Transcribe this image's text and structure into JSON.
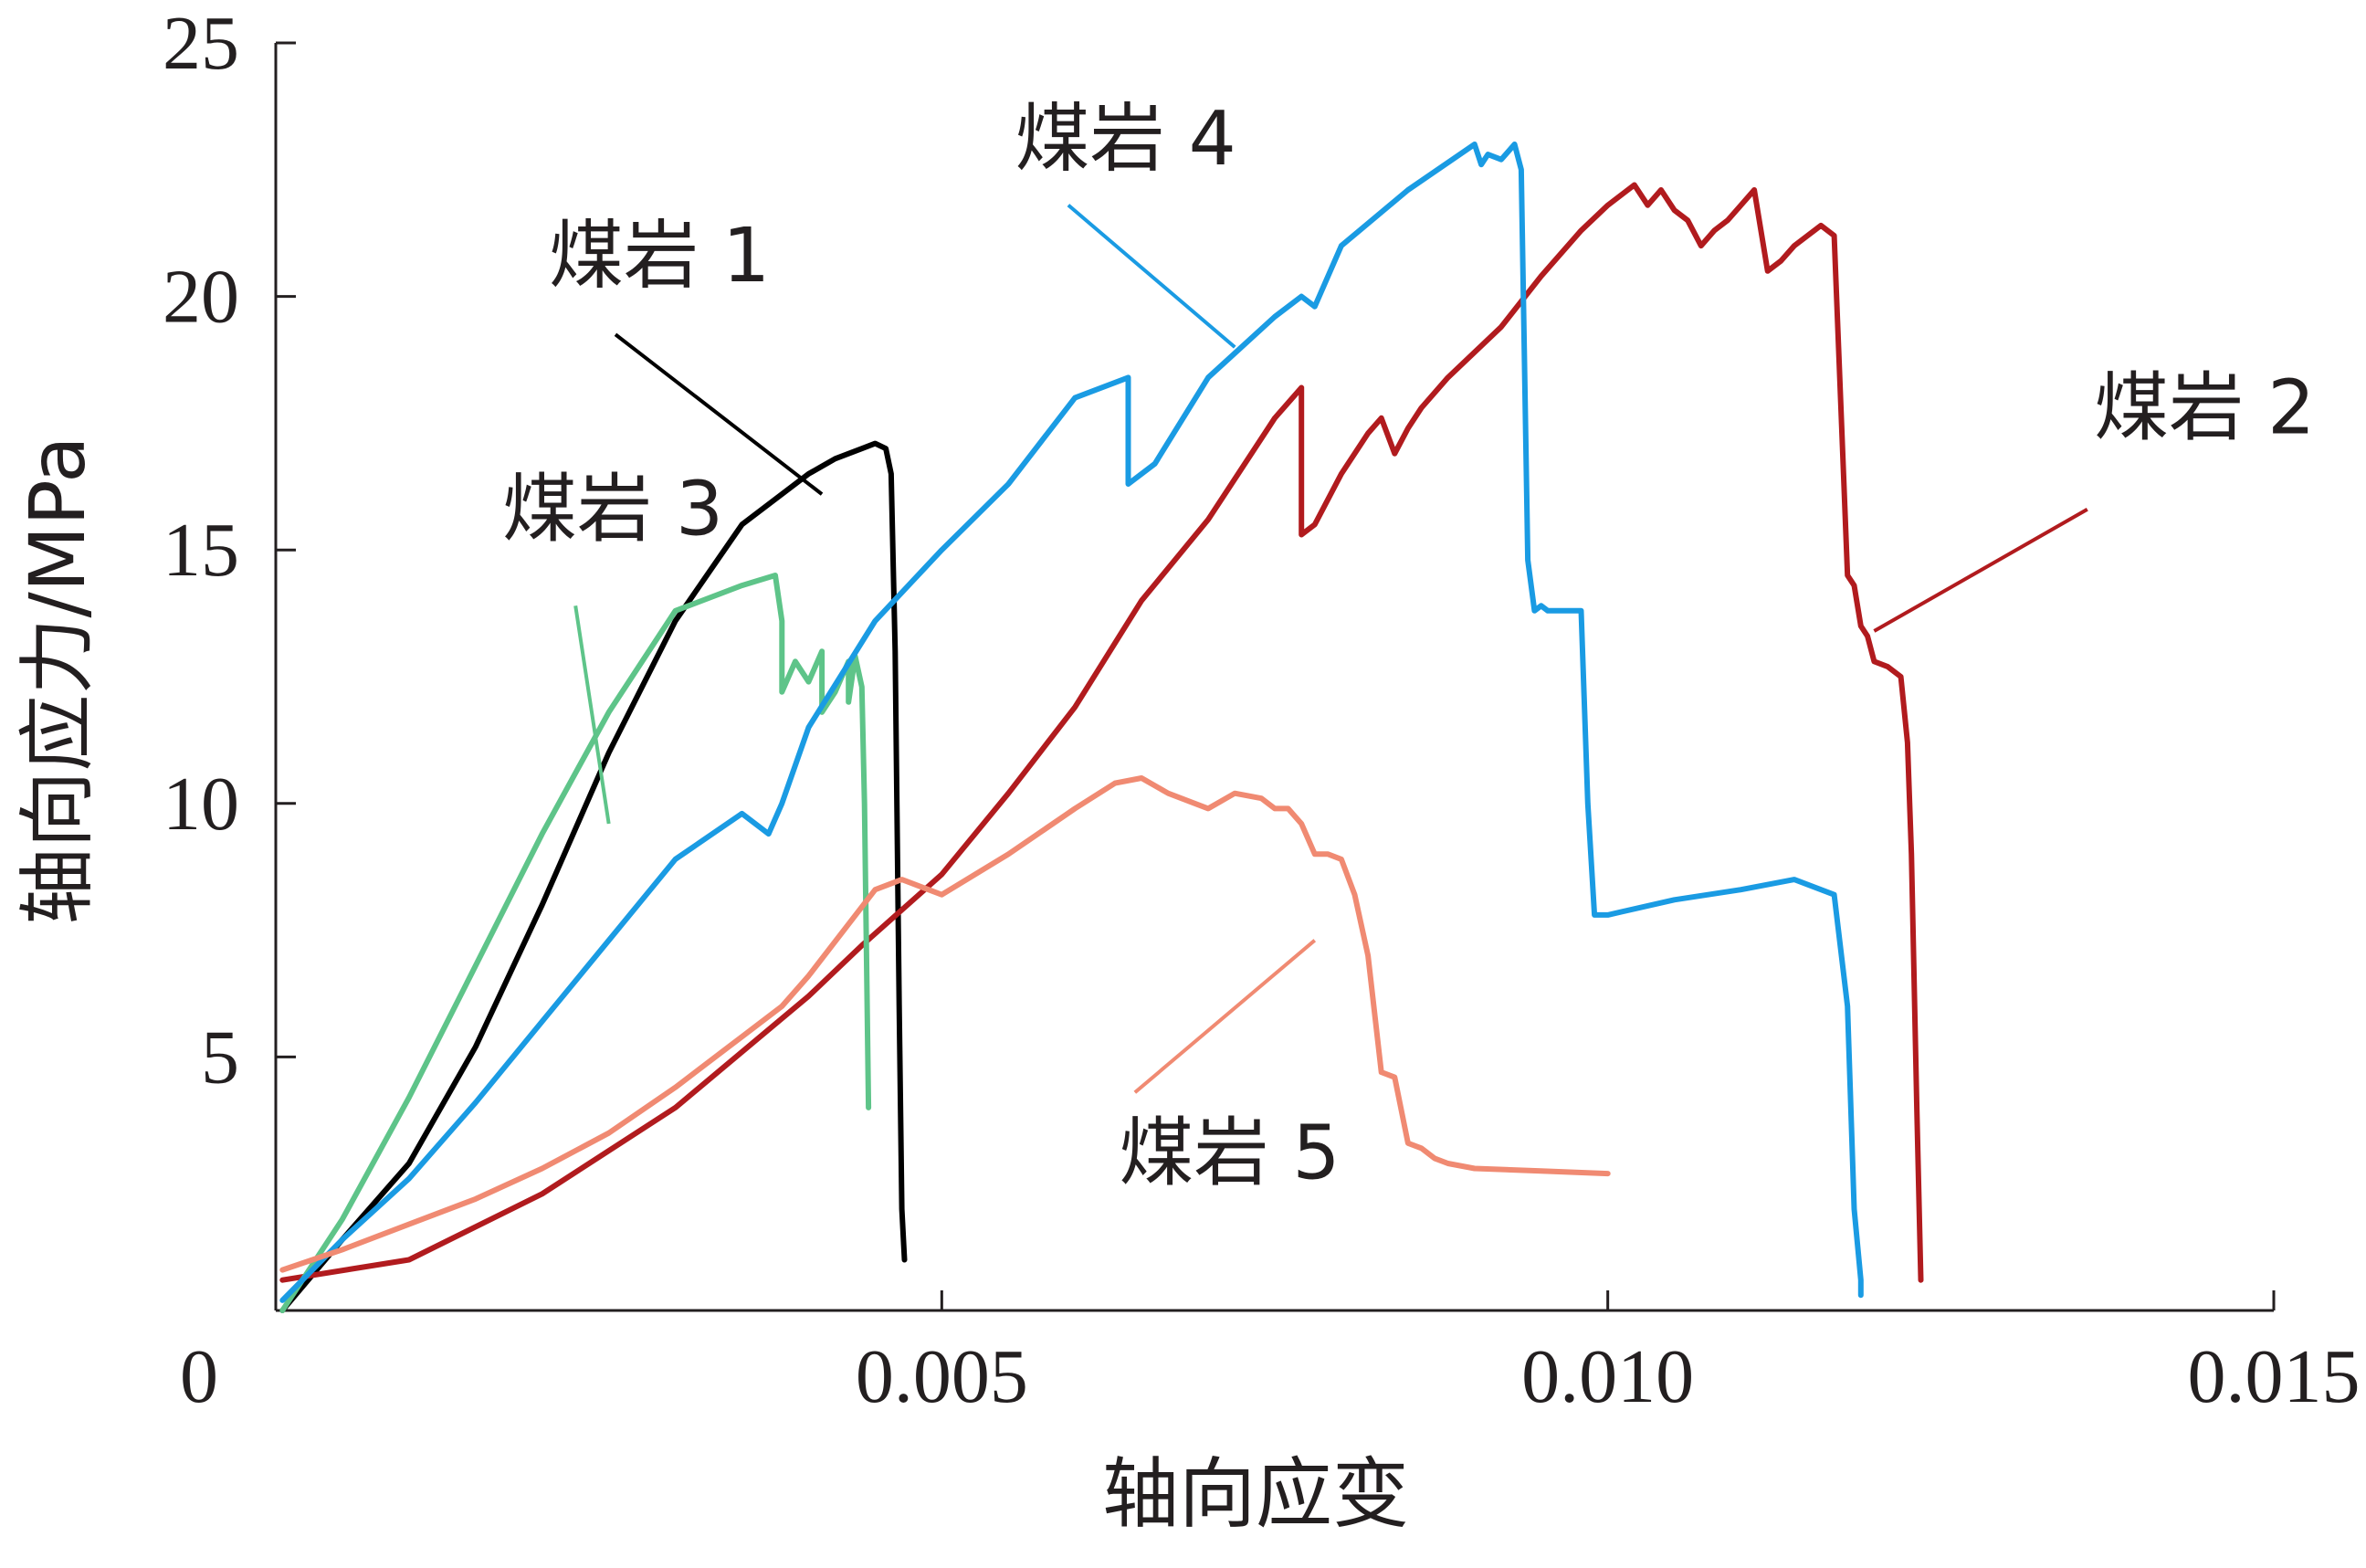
{
  "chart_data": {
    "type": "line",
    "xlabel": "轴向应变",
    "ylabel": "轴向应力/MPa",
    "xlim": [
      0,
      0.015
    ],
    "ylim": [
      0,
      25
    ],
    "x_ticks": [
      0,
      0.005,
      0.01,
      0.015
    ],
    "x_tick_labels": [
      "0",
      "0.005",
      "0.010",
      "0.015"
    ],
    "y_ticks": [
      5,
      10,
      15,
      20,
      25
    ],
    "y_tick_labels": [
      "5",
      "10",
      "15",
      "20",
      "25"
    ],
    "grid": false,
    "series": [
      {
        "name": "煤岩 1",
        "color": "#000000",
        "x": [
          5e-05,
          0.0005,
          0.001,
          0.0015,
          0.002,
          0.0025,
          0.003,
          0.0035,
          0.004,
          0.0042,
          0.0044,
          0.0045,
          0.00458,
          0.00462,
          0.00465,
          0.00468,
          0.0047,
          0.00472
        ],
        "y": [
          0,
          1.4,
          2.9,
          5.2,
          8,
          11,
          13.6,
          15.5,
          16.5,
          16.8,
          17.0,
          17.1,
          17.0,
          16.5,
          13,
          6,
          2,
          1.0
        ]
      },
      {
        "name": "煤岩 2",
        "color": "#b11b1e",
        "x": [
          5e-05,
          0.001,
          0.002,
          0.003,
          0.004,
          0.0044,
          0.005,
          0.0055,
          0.006,
          0.0065,
          0.007,
          0.0075,
          0.0077,
          0.0077,
          0.0078,
          0.008,
          0.0082,
          0.0083,
          0.0084,
          0.0085,
          0.0086,
          0.0088,
          0.009,
          0.0092,
          0.0095,
          0.0098,
          0.01,
          0.0102,
          0.0103,
          0.0104,
          0.0105,
          0.0106,
          0.0107,
          0.0108,
          0.0109,
          0.011,
          0.0111,
          0.0112,
          0.0113,
          0.0114,
          0.0115,
          0.0116,
          0.0117,
          0.0118,
          0.01185,
          0.0119,
          0.01195,
          0.012,
          0.0121,
          0.0122,
          0.01225,
          0.01228,
          0.01232,
          0.01235
        ],
        "y": [
          0.6,
          1.0,
          2.3,
          4,
          6.2,
          7.2,
          8.6,
          10.2,
          11.9,
          14,
          15.6,
          17.6,
          18.2,
          15.3,
          15.5,
          16.5,
          17.3,
          17.6,
          16.9,
          17.4,
          17.8,
          18.4,
          18.9,
          19.4,
          20.4,
          21.3,
          21.8,
          22.2,
          21.8,
          22.1,
          21.7,
          21.5,
          21.0,
          21.3,
          21.5,
          21.8,
          22.1,
          20.5,
          20.7,
          21.0,
          21.2,
          21.4,
          21.2,
          14.5,
          14.3,
          13.5,
          13.3,
          12.8,
          12.7,
          12.5,
          11.2,
          9,
          4,
          0.6
        ]
      },
      {
        "name": "煤岩 3",
        "color": "#5ec489",
        "x": [
          5e-05,
          0.0005,
          0.001,
          0.0015,
          0.002,
          0.0025,
          0.003,
          0.0035,
          0.00375,
          0.0038,
          0.0038,
          0.0039,
          0.004,
          0.0041,
          0.0041,
          0.0042,
          0.0043,
          0.0043,
          0.00435,
          0.0044,
          0.00442,
          0.00445
        ],
        "y": [
          0,
          1.8,
          4.2,
          6.8,
          9.4,
          11.8,
          13.8,
          14.3,
          14.5,
          13.6,
          12.2,
          12.8,
          12.4,
          13.0,
          11.8,
          12.2,
          12.8,
          12.0,
          12.9,
          12.3,
          10,
          4.0
        ]
      },
      {
        "name": "煤岩 4",
        "color": "#1a9be3",
        "x": [
          5e-05,
          0.0005,
          0.001,
          0.0015,
          0.002,
          0.0025,
          0.003,
          0.0035,
          0.0037,
          0.0038,
          0.004,
          0.0045,
          0.005,
          0.0055,
          0.006,
          0.0064,
          0.0064,
          0.0066,
          0.007,
          0.0075,
          0.0077,
          0.0078,
          0.008,
          0.0085,
          0.009,
          0.00905,
          0.0091,
          0.0092,
          0.0093,
          0.00935,
          0.0094,
          0.00945,
          0.0095,
          0.00955,
          0.0096,
          0.0098,
          0.00985,
          0.0099,
          0.01,
          0.0105,
          0.011,
          0.0114,
          0.0117,
          0.0118,
          0.01185,
          0.0119,
          0.0119
        ],
        "y": [
          0.2,
          1.4,
          2.6,
          4.1,
          5.7,
          7.3,
          8.9,
          9.8,
          9.4,
          10.0,
          11.5,
          13.6,
          15.0,
          16.3,
          18.0,
          18.4,
          16.3,
          16.7,
          18.4,
          19.6,
          20.0,
          19.8,
          21.0,
          22.1,
          23.0,
          22.6,
          22.8,
          22.7,
          23.0,
          22.5,
          14.8,
          13.8,
          13.9,
          13.8,
          13.8,
          13.8,
          10,
          7.8,
          7.8,
          8.1,
          8.3,
          8.5,
          8.2,
          6,
          2,
          0.6,
          0.3
        ]
      },
      {
        "name": "煤岩 5",
        "color": "#f08a72",
        "x": [
          5e-05,
          0.0005,
          0.001,
          0.0015,
          0.002,
          0.0025,
          0.003,
          0.0035,
          0.0038,
          0.004,
          0.0045,
          0.0047,
          0.005,
          0.0055,
          0.006,
          0.0063,
          0.0065,
          0.0067,
          0.007,
          0.0072,
          0.0074,
          0.0075,
          0.0076,
          0.0077,
          0.0078,
          0.0079,
          0.008,
          0.0081,
          0.0082,
          0.0083,
          0.0084,
          0.0085,
          0.0086,
          0.0087,
          0.0088,
          0.009,
          0.0095,
          0.01
        ],
        "y": [
          0.8,
          1.2,
          1.7,
          2.2,
          2.8,
          3.5,
          4.4,
          5.4,
          6.0,
          6.6,
          8.3,
          8.5,
          8.2,
          9.0,
          9.9,
          10.4,
          10.5,
          10.2,
          9.9,
          10.2,
          10.1,
          9.9,
          9.9,
          9.6,
          9.0,
          9.0,
          8.9,
          8.2,
          7.0,
          4.7,
          4.6,
          3.3,
          3.2,
          3.0,
          2.9,
          2.8,
          2.75,
          2.7
        ]
      }
    ],
    "labels": [
      {
        "text": "煤岩 1",
        "series": 0,
        "tx": 0.00205,
        "ty": 20.3,
        "ax": 0.00255,
        "ay": 19.25,
        "bx": 0.0041,
        "by": 16.1
      },
      {
        "text": "煤岩 2",
        "series": 1,
        "tx": 0.01365,
        "ty": 17.3,
        "ax": 0.0136,
        "ay": 15.8,
        "bx": 0.012,
        "by": 13.4
      },
      {
        "text": "煤岩 3",
        "series": 2,
        "tx": 0.0017,
        "ty": 15.3,
        "ax": 0.00225,
        "ay": 13.9,
        "bx": 0.0025,
        "by": 9.6
      },
      {
        "text": "煤岩 4",
        "series": 3,
        "tx": 0.00555,
        "ty": 22.6,
        "ax": 0.00595,
        "ay": 21.8,
        "bx": 0.0072,
        "by": 19.0
      },
      {
        "text": "煤岩 5",
        "series": 4,
        "tx": 0.00633,
        "ty": 2.6,
        "ax": 0.00645,
        "ay": 4.3,
        "bx": 0.0078,
        "by": 7.3
      }
    ]
  }
}
